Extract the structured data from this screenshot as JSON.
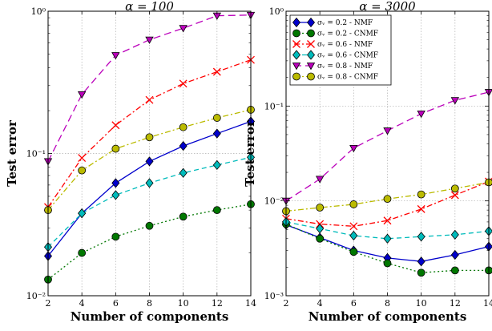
{
  "chart_data": [
    {
      "type": "line",
      "title": "α = 100",
      "xlabel": "Number of components",
      "ylabel": "Test error",
      "yscale": "log",
      "xlim": [
        2,
        14
      ],
      "ylim": [
        0.01,
        1
      ],
      "x_ticks": [
        "2",
        "4",
        "6",
        "8",
        "10",
        "12",
        "14"
      ],
      "y_ticks": [
        "10⁻²",
        "10⁻¹",
        "10⁰"
      ],
      "grid": true,
      "legend": null,
      "x": [
        2,
        4,
        6,
        8,
        10,
        12,
        14
      ],
      "series": [
        {
          "name": "σᵥ = 0.2 - NMF",
          "color": "#0000cc",
          "marker": "diamond",
          "dash": "solid",
          "values": [
            0.019,
            0.038,
            0.062,
            0.088,
            0.113,
            0.138,
            0.168
          ]
        },
        {
          "name": "σᵥ = 0.2 - CNMF",
          "color": "#007700",
          "marker": "circle",
          "dash": "dotted",
          "values": [
            0.013,
            0.02,
            0.026,
            0.031,
            0.036,
            0.04,
            0.044
          ]
        },
        {
          "name": "σᵥ = 0.6 - NMF",
          "color": "#ff0000",
          "marker": "x",
          "dash": "dashdot",
          "values": [
            0.042,
            0.093,
            0.158,
            0.238,
            0.31,
            0.375,
            0.455
          ]
        },
        {
          "name": "σᵥ = 0.6 - CNMF",
          "color": "#00bbbb",
          "marker": "diamond",
          "dash": "dashed",
          "values": [
            0.022,
            0.038,
            0.051,
            0.062,
            0.073,
            0.083,
            0.094
          ]
        },
        {
          "name": "σᵥ = 0.8 - NMF",
          "color": "#bb00bb",
          "marker": "triangle-down",
          "dash": "longdash",
          "values": [
            0.088,
            0.26,
            0.49,
            0.63,
            0.76,
            0.93,
            0.94
          ]
        },
        {
          "name": "σᵥ = 0.8 - CNMF",
          "color": "#bbbb00",
          "marker": "circle",
          "dash": "dashdot",
          "values": [
            0.04,
            0.076,
            0.108,
            0.13,
            0.153,
            0.178,
            0.203
          ]
        }
      ]
    },
    {
      "type": "line",
      "title": "α = 3000",
      "xlabel": "Number of components",
      "ylabel": "Test error",
      "yscale": "log",
      "xlim": [
        2,
        14
      ],
      "ylim": [
        0.001,
        1
      ],
      "x_ticks": [
        "2",
        "4",
        "6",
        "8",
        "10",
        "12",
        "14"
      ],
      "y_ticks": [
        "10⁻³",
        "10⁻²",
        "10⁻¹",
        "10⁰"
      ],
      "grid": true,
      "legend": "top-left",
      "x": [
        2,
        4,
        6,
        8,
        10,
        12,
        14
      ],
      "series": [
        {
          "name": "σᵥ = 0.2 - NMF",
          "color": "#0000cc",
          "marker": "diamond",
          "dash": "solid",
          "values": [
            0.0056,
            0.0041,
            0.003,
            0.0025,
            0.0023,
            0.0027,
            0.0033
          ]
        },
        {
          "name": "σᵥ = 0.2 - CNMF",
          "color": "#007700",
          "marker": "circle",
          "dash": "dotted",
          "values": [
            0.0057,
            0.004,
            0.0029,
            0.0022,
            0.00175,
            0.00185,
            0.00185
          ]
        },
        {
          "name": "σᵥ = 0.6 - NMF",
          "color": "#ff0000",
          "marker": "x",
          "dash": "dashdot",
          "values": [
            0.0065,
            0.0057,
            0.0054,
            0.0062,
            0.0082,
            0.0115,
            0.016
          ]
        },
        {
          "name": "σᵥ = 0.6 - CNMF",
          "color": "#00bbbb",
          "marker": "diamond",
          "dash": "dashed",
          "values": [
            0.006,
            0.0051,
            0.0043,
            0.004,
            0.0042,
            0.0044,
            0.0048
          ]
        },
        {
          "name": "σᵥ = 0.8 - NMF",
          "color": "#bb00bb",
          "marker": "triangle-down",
          "dash": "longdash",
          "values": [
            0.01,
            0.017,
            0.036,
            0.055,
            0.083,
            0.115,
            0.14
          ]
        },
        {
          "name": "σᵥ = 0.8 - CNMF",
          "color": "#bbbb00",
          "marker": "circle",
          "dash": "dashdot",
          "values": [
            0.0078,
            0.0085,
            0.0092,
            0.0105,
            0.0117,
            0.0135,
            0.0157
          ]
        }
      ]
    }
  ]
}
